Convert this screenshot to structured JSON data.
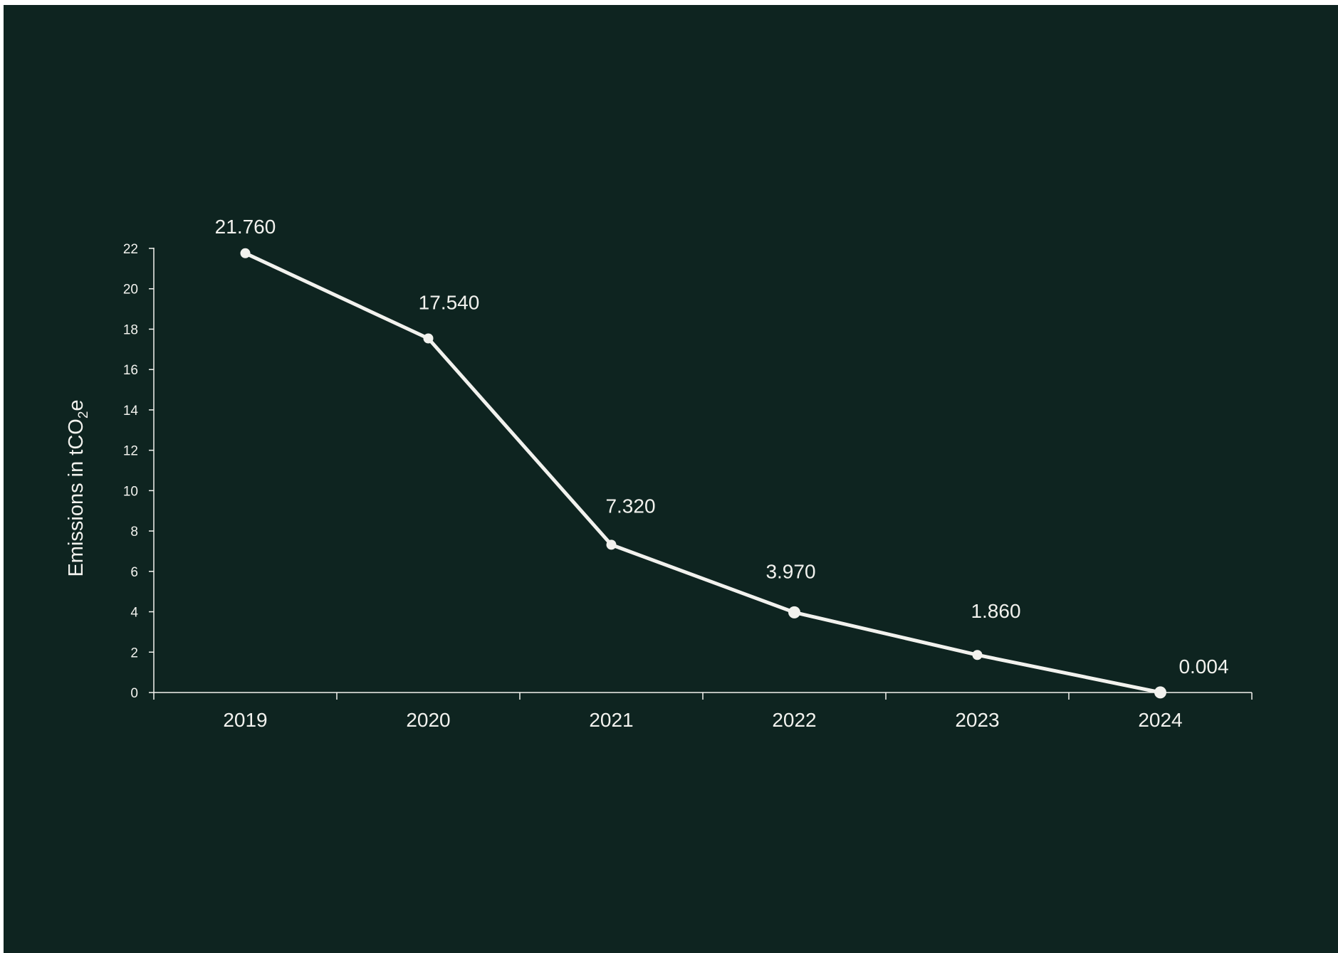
{
  "colors": {
    "background": "#0e2420",
    "foreground": "#f2f2ee"
  },
  "chart_data": {
    "type": "line",
    "ylabel": {
      "text": "Emissions in tCO",
      "subscript": "2",
      "suffix": "e"
    },
    "xlabel": "",
    "categories": [
      "2019",
      "2020",
      "2021",
      "2022",
      "2023",
      "2024"
    ],
    "series": [
      {
        "values": [
          21.76,
          17.54,
          7.32,
          3.97,
          1.86,
          0.004
        ],
        "labels": [
          "21.760",
          "17.540",
          "7.320",
          "3.970",
          "1.860",
          "0.004"
        ]
      }
    ],
    "ylim": [
      0,
      22
    ],
    "yticks": [
      "0",
      "2",
      "4",
      "6",
      "8",
      "10",
      "12",
      "14",
      "16",
      "18",
      "20",
      "22"
    ],
    "grid": false,
    "legend": "none"
  }
}
